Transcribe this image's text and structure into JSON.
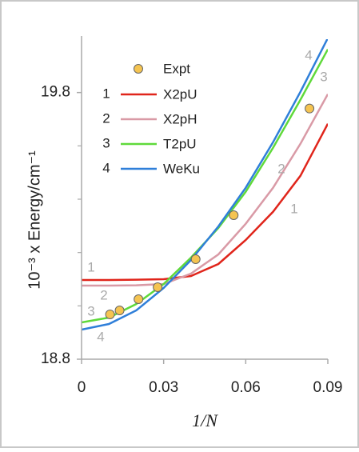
{
  "chart_data": {
    "type": "line",
    "y_label": "10⁻³ x Energy/cm⁻¹",
    "x_label": "1/N",
    "xlim": [
      0,
      0.09
    ],
    "xticks": [
      0,
      0.03,
      0.06,
      0.09
    ],
    "ylim": [
      18.8,
      20.0
    ],
    "yticks": [
      18.8,
      19.8
    ],
    "minor_yticks": [
      19.0,
      19.2,
      19.4,
      19.6
    ],
    "points": {
      "name": "Expt",
      "color": "#f5c451",
      "x": [
        0.0104,
        0.0139,
        0.0208,
        0.0278,
        0.0417,
        0.0556,
        0.0833
      ],
      "values": [
        18.968,
        18.983,
        19.025,
        19.07,
        19.175,
        19.34,
        19.74
      ]
    },
    "x": [
      0,
      0.01,
      0.02,
      0.03,
      0.04,
      0.05,
      0.06,
      0.07,
      0.08,
      0.09
    ],
    "series": [
      {
        "label": "1",
        "name": "X2pU",
        "color": "#e0251b",
        "values": [
          19.097,
          19.097,
          19.098,
          19.1,
          19.112,
          19.157,
          19.247,
          19.353,
          19.488,
          19.683
        ]
      },
      {
        "label": "2",
        "name": "X2pH",
        "color": "#d99aa6",
        "values": [
          19.076,
          19.076,
          19.077,
          19.082,
          19.121,
          19.193,
          19.308,
          19.443,
          19.608,
          19.794
        ]
      },
      {
        "label": "3",
        "name": "T2pU",
        "color": "#5fd93a",
        "values": [
          18.938,
          18.956,
          19.007,
          19.082,
          19.181,
          19.292,
          19.428,
          19.593,
          19.773,
          19.962
        ]
      },
      {
        "label": "4",
        "name": "WeKu",
        "color": "#2f7fd9",
        "values": [
          18.911,
          18.932,
          18.983,
          19.067,
          19.172,
          19.298,
          19.443,
          19.614,
          19.803,
          20.004
        ]
      }
    ]
  }
}
